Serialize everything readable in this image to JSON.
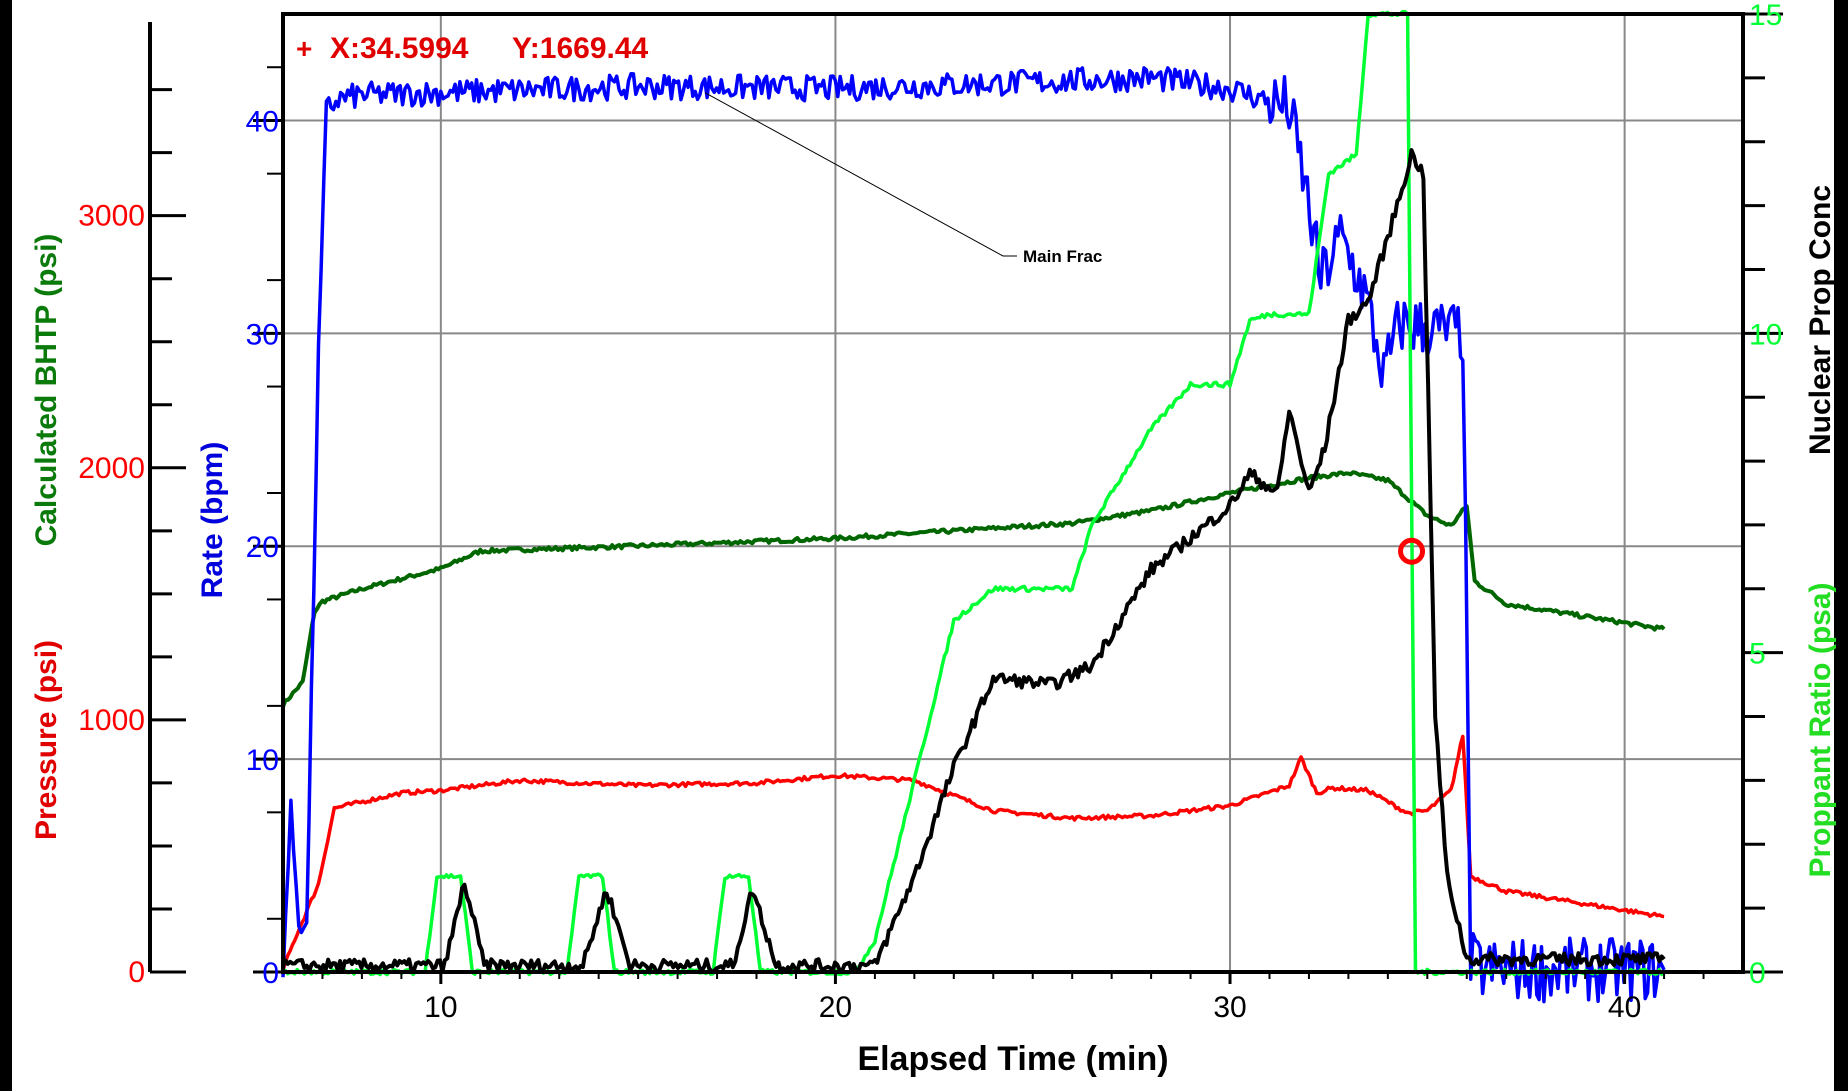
{
  "cursor_readout": {
    "marker": "+",
    "x_text": "X:34.5994",
    "y_text": "Y:1669.44"
  },
  "annotation": {
    "text": "Main Frac"
  },
  "colors": {
    "pressure": "#ff0000",
    "rate": "#0000ff",
    "bhtp": "#006600",
    "proppant_ratio": "#00ff33",
    "nuclear_prop_conc": "#000000",
    "grid": "#888888"
  },
  "chart_data": {
    "type": "line",
    "xlabel": "Elapsed Time (min)",
    "xlim": [
      6,
      43
    ],
    "xticks": [
      10,
      20,
      30,
      40
    ],
    "grid": true,
    "axes": {
      "pressure": {
        "label": "Pressure (psi)",
        "lim": [
          0,
          3800
        ],
        "ticks": [
          0,
          1000,
          2000,
          3000
        ]
      },
      "bhtp": {
        "label": "Calculated BHTP (psi)",
        "lim": [
          0,
          3800
        ],
        "ticks": [
          0,
          1000,
          2000,
          3000
        ]
      },
      "rate": {
        "label": "Rate (bpm)",
        "lim": [
          0,
          45
        ],
        "ticks": [
          0,
          10,
          20,
          30,
          40
        ]
      },
      "nuclear_prop_conc": {
        "label": "Nuclear Prop Conc",
        "lim": [
          0,
          15
        ]
      },
      "proppant_ratio": {
        "label": "Proppant Ratio (psa)",
        "lim": [
          0,
          15
        ],
        "ticks": [
          0,
          5,
          10,
          15
        ]
      }
    },
    "marker": {
      "x": 34.6,
      "y": 1669
    },
    "series": [
      {
        "name": "Rate (bpm)",
        "axis": "rate",
        "key": "rate",
        "x": [
          6,
          6.2,
          6.4,
          6.6,
          6.9,
          7.1,
          7.4,
          8,
          10,
          15,
          20,
          25,
          28,
          30,
          31.5,
          31.9,
          32.3,
          32.8,
          33.4,
          33.9,
          34.3,
          35,
          35.9,
          36.1,
          36.4,
          41
        ],
        "y": [
          0.3,
          7.5,
          2.5,
          2,
          29,
          40.5,
          41,
          41.2,
          41.3,
          41.6,
          41.5,
          41.8,
          42,
          41.5,
          40.6,
          37,
          32.5,
          34.5,
          32,
          28,
          30.5,
          30.2,
          30,
          0.5,
          0.1,
          0.1
        ]
      },
      {
        "name": "Pressure (psi)",
        "axis": "pressure",
        "key": "pressure",
        "x": [
          6,
          6.3,
          6.9,
          7.3,
          9,
          10,
          12,
          15,
          18,
          20,
          22,
          24,
          26,
          28,
          30,
          31.5,
          31.8,
          32.2,
          32.6,
          33.5,
          34.5,
          35,
          35.6,
          35.9,
          36.1,
          37,
          41
        ],
        "y": [
          10,
          130,
          350,
          650,
          710,
          720,
          760,
          740,
          750,
          780,
          760,
          640,
          610,
          620,
          660,
          740,
          850,
          710,
          730,
          720,
          630,
          640,
          720,
          940,
          380,
          320,
          220
        ]
      },
      {
        "name": "Calculated BHTP (psi)",
        "axis": "bhtp",
        "key": "bhtp",
        "x": [
          6,
          6.5,
          6.8,
          7,
          8,
          10,
          11,
          15,
          20,
          24,
          26,
          28,
          30,
          32,
          33,
          34,
          35,
          35.6,
          36,
          36.2,
          37,
          41
        ],
        "y": [
          1060,
          1150,
          1430,
          1470,
          1520,
          1600,
          1670,
          1690,
          1720,
          1760,
          1780,
          1830,
          1900,
          1960,
          1980,
          1950,
          1810,
          1770,
          1850,
          1550,
          1460,
          1360
        ]
      },
      {
        "name": "Proppant Ratio (psa)",
        "axis": "proppant_ratio",
        "key": "proppant_ratio",
        "x": [
          6,
          9.6,
          9.9,
          10.5,
          10.8,
          13.2,
          13.5,
          14.1,
          14.4,
          16.9,
          17.2,
          17.8,
          18.1,
          20.5,
          21,
          22,
          23,
          24,
          26,
          26.5,
          28,
          29,
          30,
          30.5,
          31,
          32,
          32.5,
          33.2,
          33.5,
          34.3,
          34.5,
          34.7,
          36,
          41
        ],
        "y": [
          0,
          0,
          1.5,
          1.5,
          0,
          0,
          1.5,
          1.5,
          0,
          0,
          1.5,
          1.5,
          0,
          0,
          0.5,
          3,
          5.5,
          6,
          6,
          7,
          8.5,
          9.2,
          9.2,
          10.2,
          10.3,
          10.3,
          12.5,
          12.8,
          15,
          15,
          15,
          0,
          0,
          0
        ]
      },
      {
        "name": "Nuclear Prop Conc",
        "axis": "nuclear_prop_conc",
        "key": "nuclear_prop_conc",
        "x": [
          6,
          10.1,
          10.6,
          11.1,
          13.6,
          14.2,
          14.8,
          17.4,
          17.9,
          18.5,
          21,
          22,
          23,
          24,
          25.5,
          26.5,
          28,
          29,
          30,
          30.5,
          31.2,
          31.5,
          32,
          32.4,
          33,
          33.5,
          34,
          34.6,
          34.9,
          35.2,
          35.5,
          36,
          41
        ],
        "y": [
          0.1,
          0.1,
          1.4,
          0.1,
          0.1,
          1.3,
          0.1,
          0.1,
          1.3,
          0.1,
          0.1,
          1.5,
          3.2,
          4.6,
          4.5,
          4.8,
          6.3,
          6.8,
          7.3,
          7.8,
          7.5,
          8.8,
          7.5,
          8.2,
          10.2,
          10.5,
          11.5,
          12.8,
          12.5,
          4,
          1.5,
          0.2,
          0.2
        ]
      }
    ]
  }
}
